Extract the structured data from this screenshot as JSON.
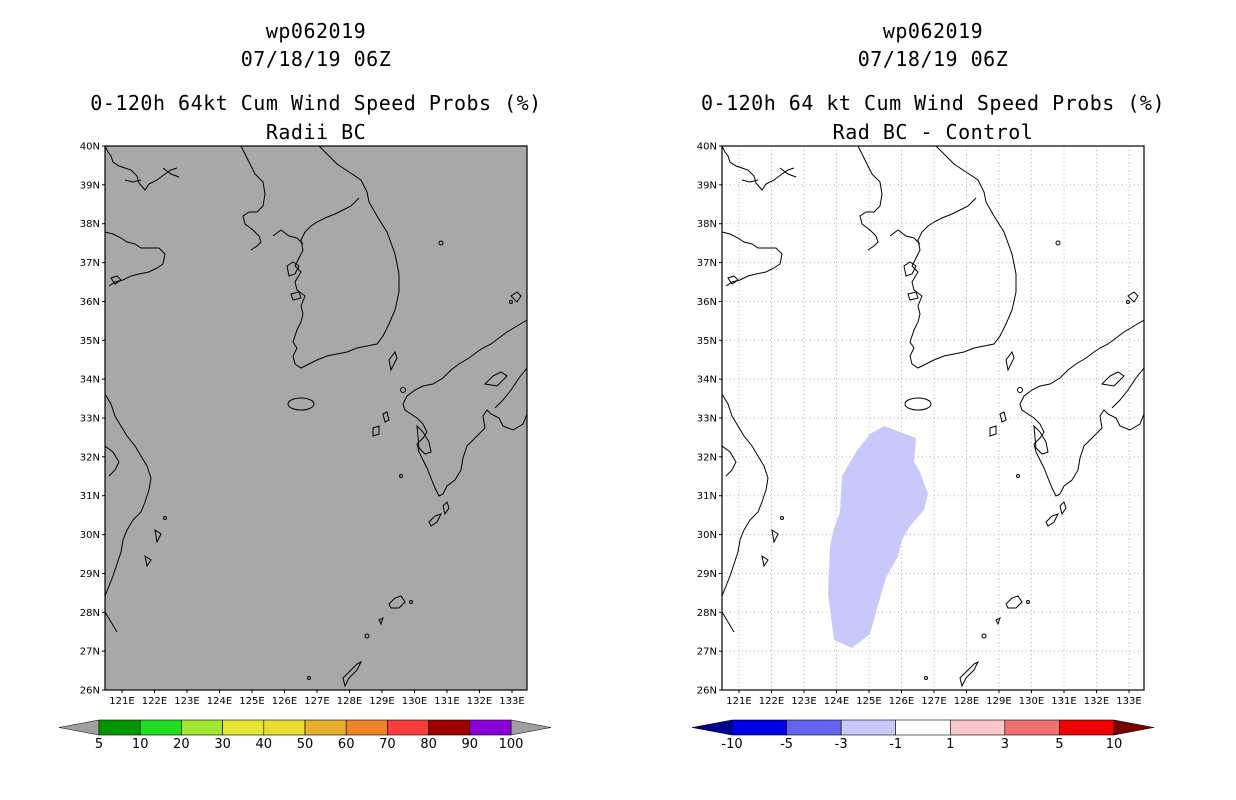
{
  "left_panel": {
    "storm_id": "wp062019",
    "datetime": "07/18/19 06Z",
    "product": "0-120h 64kt Cum Wind Speed Probs (%)",
    "subtitle": "Radii BC",
    "background_color": "#a8a8a8",
    "colorbar": {
      "labels": [
        "5",
        "10",
        "20",
        "30",
        "40",
        "50",
        "60",
        "70",
        "80",
        "90",
        "100"
      ],
      "colors": [
        "#009600",
        "#22dd22",
        "#a0e632",
        "#e6e632",
        "#e6dc32",
        "#e6af2d",
        "#f08228",
        "#fa3c3c",
        "#a00000",
        "#8c00dc"
      ],
      "end_color": "#a0a0a0"
    }
  },
  "right_panel": {
    "storm_id": "wp062019",
    "datetime": "07/18/19 06Z",
    "product": "0-120h 64 kt Cum Wind Speed Probs (%)",
    "subtitle": "Rad BC - Control",
    "background_color": "#ffffff",
    "shaded_region_color": "#c8c8fa",
    "colorbar": {
      "labels": [
        "-10",
        "-5",
        "-3",
        "-1",
        "1",
        "3",
        "5",
        "10"
      ],
      "colors": [
        "#0000e6",
        "#6464f0",
        "#c8c8fa",
        "#ffffff",
        "#fac8c8",
        "#f07070",
        "#f00000"
      ],
      "low_end_color": "#000090",
      "high_end_color": "#780000"
    }
  },
  "map": {
    "lat_labels": [
      "40N",
      "39N",
      "38N",
      "37N",
      "36N",
      "35N",
      "34N",
      "33N",
      "32N",
      "31N",
      "30N",
      "29N",
      "28N",
      "27N",
      "26N"
    ],
    "lon_labels": [
      "121E",
      "122E",
      "123E",
      "124E",
      "125E",
      "126E",
      "127E",
      "128E",
      "129E",
      "130E",
      "131E",
      "132E",
      "133E"
    ]
  }
}
